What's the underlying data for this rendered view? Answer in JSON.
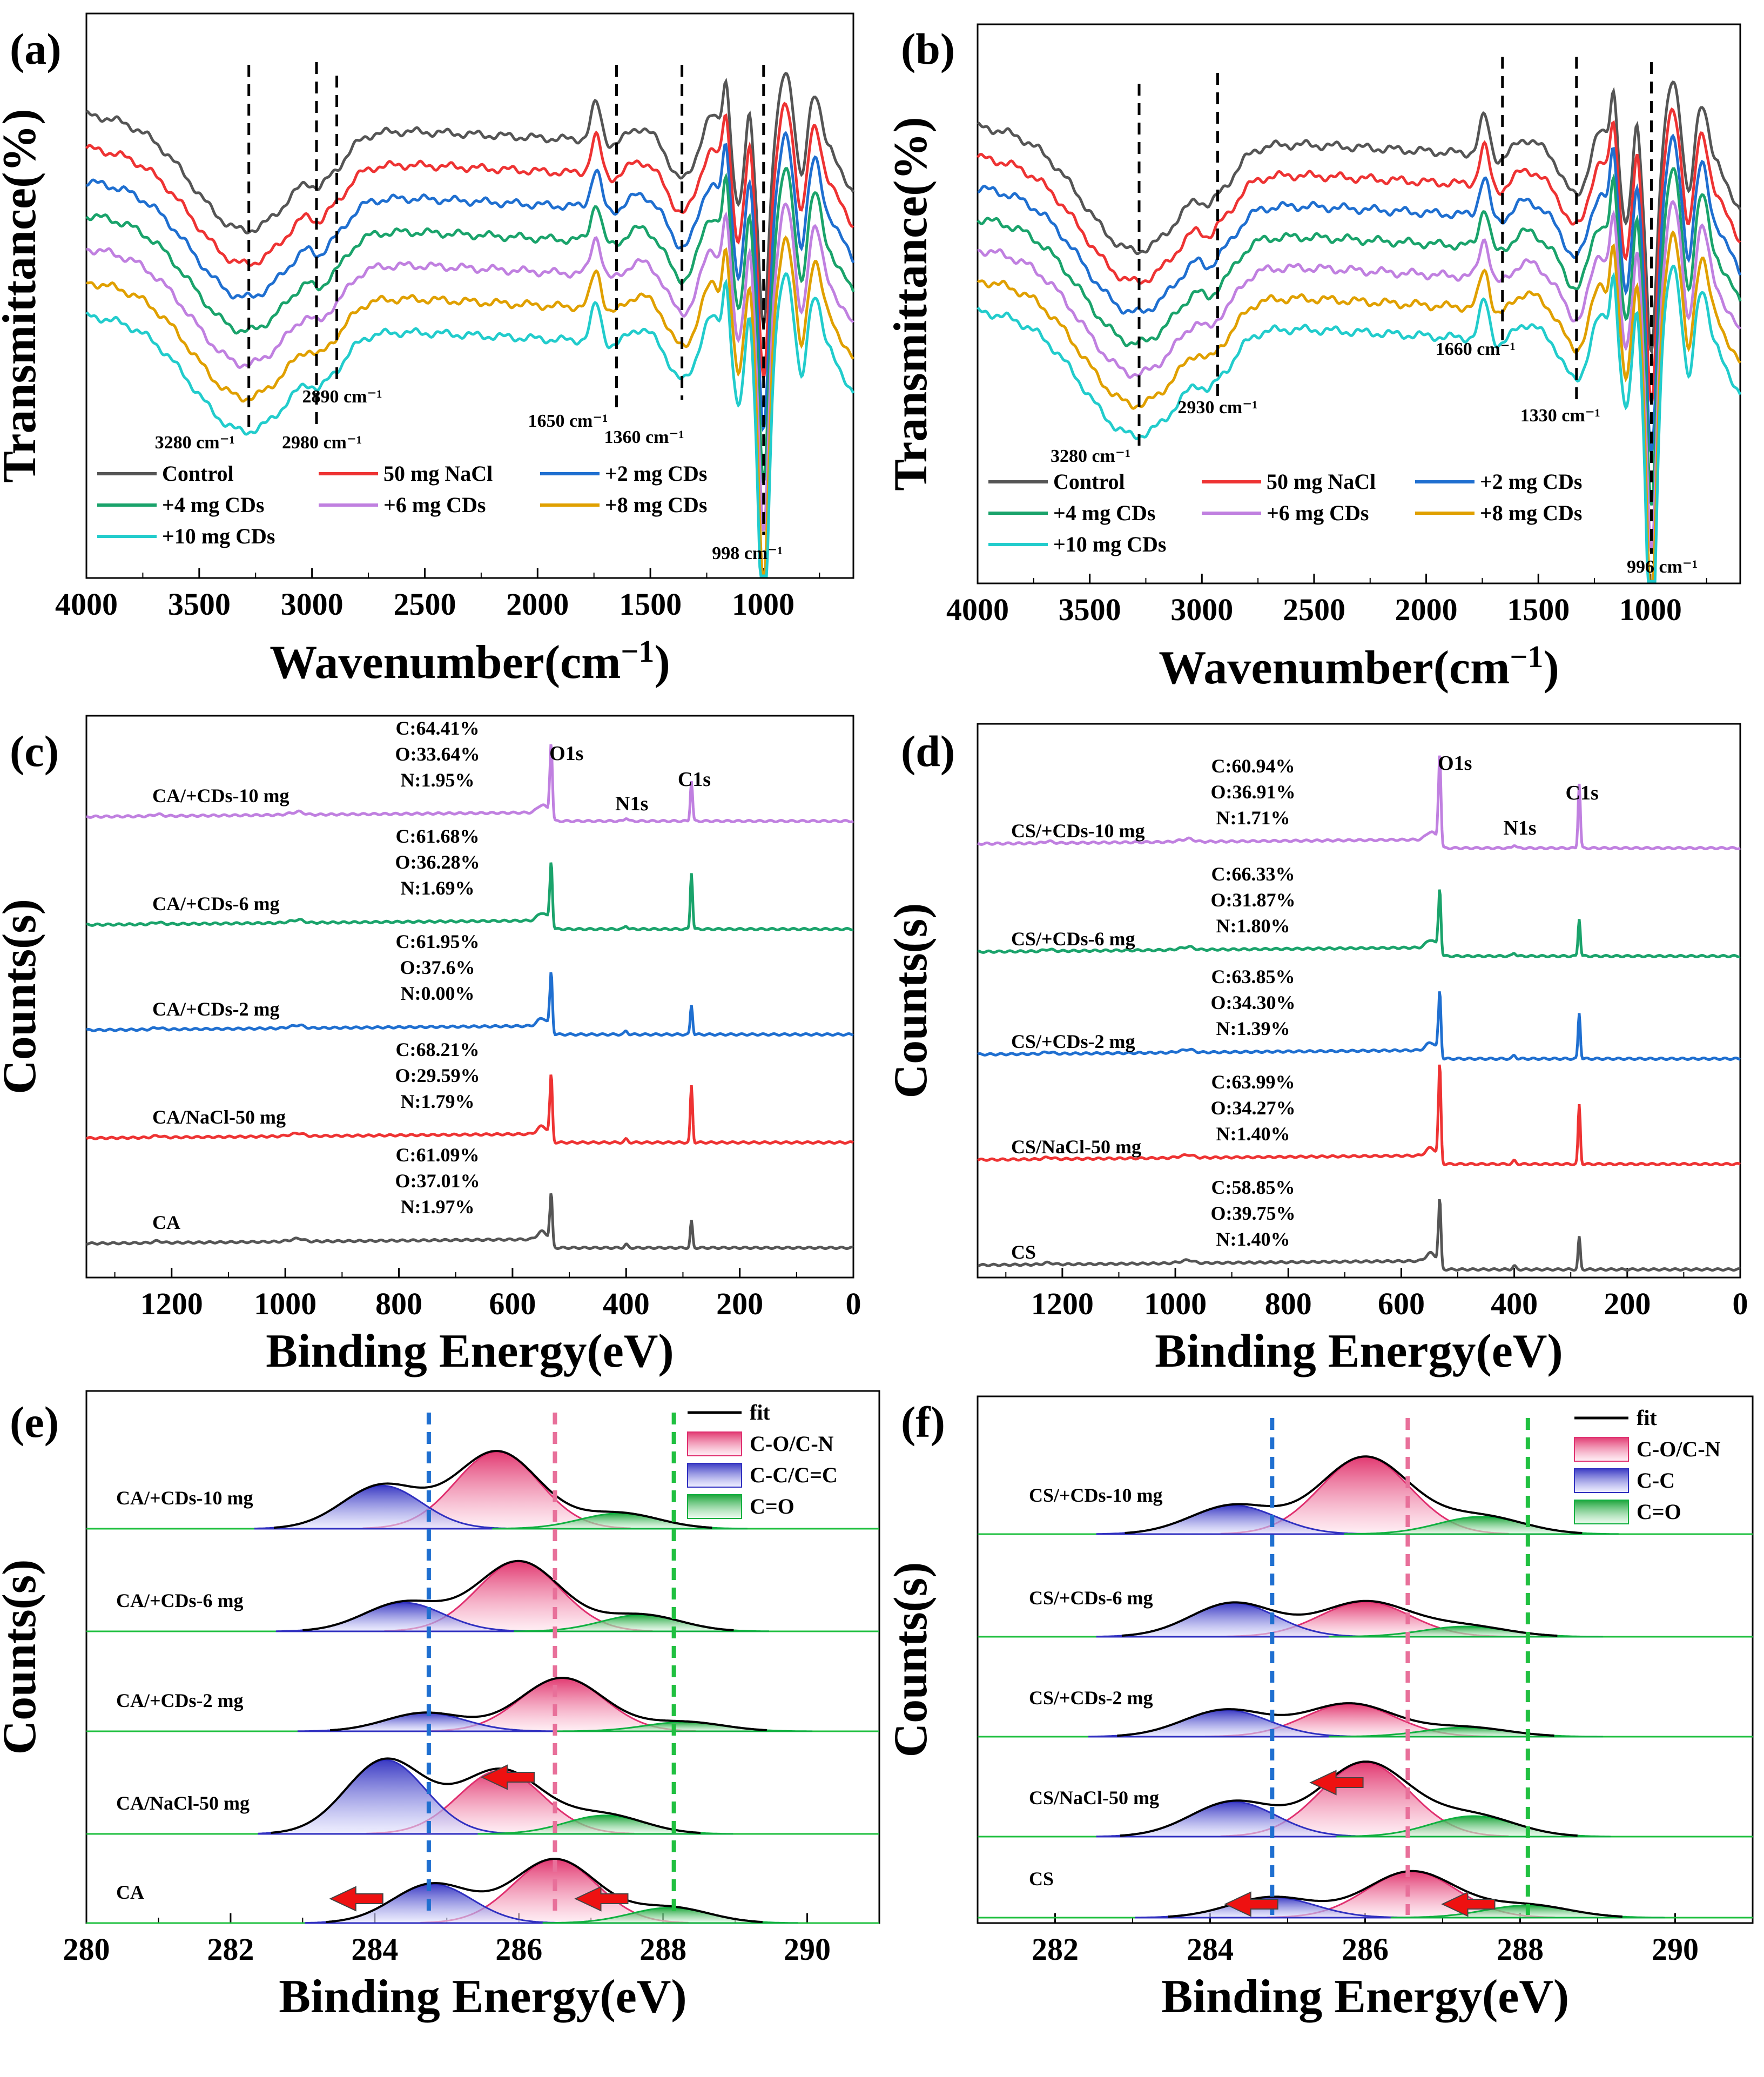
{
  "chart_data": [
    {
      "id": "a",
      "panel_label": "(a)",
      "type": "line",
      "xlabel_main": "Wavenumber(cm",
      "xlabel_sup": "−1",
      "xlabel_end": ")",
      "ylabel": "Transmittance(%)",
      "xlim": [
        4000,
        600
      ],
      "xticks": [
        4000,
        3500,
        3000,
        2500,
        2000,
        1500,
        1000
      ],
      "series": [
        {
          "name": "Control",
          "color": "#555555"
        },
        {
          "name": "50 mg NaCl",
          "color": "#ee3333"
        },
        {
          "name": "+2 mg CDs",
          "color": "#1f6fd0"
        },
        {
          "name": "+4 mg CDs",
          "color": "#1aa36b"
        },
        {
          "name": "+6 mg CDs",
          "color": "#c080e0"
        },
        {
          "name": "+8 mg CDs",
          "color": "#e0a000"
        },
        {
          "name": "+10 mg CDs",
          "color": "#22cccc"
        }
      ],
      "vlines": [
        3280,
        2980,
        2890,
        1650,
        1360,
        998
      ],
      "annotations": [
        "3280 cm⁻¹",
        "2980 cm⁻¹",
        "2890 cm⁻¹",
        "1650 cm⁻¹",
        "1360 cm⁻¹",
        "998 cm⁻¹"
      ]
    },
    {
      "id": "b",
      "panel_label": "(b)",
      "type": "line",
      "xlabel_main": "Wavenumber(cm",
      "xlabel_sup": "−1",
      "xlabel_end": ")",
      "ylabel": "Transmittance(%)",
      "xlim": [
        4000,
        600
      ],
      "xticks": [
        4000,
        3500,
        3000,
        2500,
        2000,
        1500,
        1000
      ],
      "series": [
        {
          "name": "Control",
          "color": "#555555"
        },
        {
          "name": "50 mg NaCl",
          "color": "#ee3333"
        },
        {
          "name": "+2 mg CDs",
          "color": "#1f6fd0"
        },
        {
          "name": "+4 mg CDs",
          "color": "#1aa36b"
        },
        {
          "name": "+6 mg CDs",
          "color": "#c080e0"
        },
        {
          "name": "+8 mg CDs",
          "color": "#e0a000"
        },
        {
          "name": "+10 mg CDs",
          "color": "#22cccc"
        }
      ],
      "vlines": [
        3280,
        2930,
        1660,
        1330,
        996
      ],
      "annotations": [
        "3280 cm⁻¹",
        "2930 cm⁻¹",
        "1660 cm⁻¹",
        "1330 cm⁻¹",
        "996 cm⁻¹"
      ]
    },
    {
      "id": "c",
      "panel_label": "(c)",
      "type": "line",
      "xlabel": "Binding Energy(eV)",
      "ylabel": "Counts(s)",
      "xlim": [
        1350,
        0
      ],
      "xticks": [
        1200,
        1000,
        800,
        600,
        400,
        200,
        0
      ],
      "peak_labels": [
        "O1s",
        "N1s",
        "C1s"
      ],
      "samples": [
        {
          "name": "CA/+CDs-10 mg",
          "color": "#c080e0",
          "composition": [
            "C:64.41%",
            "O:33.64%",
            "N:1.95%"
          ]
        },
        {
          "name": "CA/+CDs-6 mg",
          "color": "#1aa36b",
          "composition": [
            "C:61.68%",
            "O:36.28%",
            "N:1.69%"
          ]
        },
        {
          "name": "CA/+CDs-2 mg",
          "color": "#1f6fd0",
          "composition": [
            "C:61.95%",
            "O:37.6%",
            "N:0.00%"
          ]
        },
        {
          "name": "CA/NaCl-50 mg",
          "color": "#ee3333",
          "composition": [
            "C:68.21%",
            "O:29.59%",
            "N:1.79%"
          ]
        },
        {
          "name": "CA",
          "color": "#555555",
          "composition": [
            "C:61.09%",
            "O:37.01%",
            "N:1.97%"
          ]
        }
      ]
    },
    {
      "id": "d",
      "panel_label": "(d)",
      "type": "line",
      "xlabel": "Binding Energy(eV)",
      "ylabel": "Counts(s)",
      "xlim": [
        1350,
        0
      ],
      "xticks": [
        1200,
        1000,
        800,
        600,
        400,
        200,
        0
      ],
      "peak_labels": [
        "O1s",
        "N1s",
        "C1s"
      ],
      "samples": [
        {
          "name": "CS/+CDs-10 mg",
          "color": "#c080e0",
          "composition": [
            "C:60.94%",
            "O:36.91%",
            "N:1.71%"
          ]
        },
        {
          "name": "CS/+CDs-6 mg",
          "color": "#1aa36b",
          "composition": [
            "C:66.33%",
            "O:31.87%",
            "N:1.80%"
          ]
        },
        {
          "name": "CS/+CDs-2 mg",
          "color": "#1f6fd0",
          "composition": [
            "C:63.85%",
            "O:34.30%",
            "N:1.39%"
          ]
        },
        {
          "name": "CS/NaCl-50 mg",
          "color": "#ee3333",
          "composition": [
            "C:63.99%",
            "O:34.27%",
            "N:1.40%"
          ]
        },
        {
          "name": "CS",
          "color": "#555555",
          "composition": [
            "C:58.85%",
            "O:39.75%",
            "N:1.40%"
          ]
        }
      ]
    },
    {
      "id": "e",
      "panel_label": "(e)",
      "type": "area",
      "xlabel": "Binding Energy(eV)",
      "ylabel": "Counts(s)",
      "xlim": [
        280,
        291
      ],
      "xticks": [
        280,
        282,
        284,
        286,
        288,
        290
      ],
      "legend": [
        {
          "name": "fit",
          "color": "#000000"
        },
        {
          "name": "C-O/C-N",
          "color": "#e8507a"
        },
        {
          "name": "C-C/C=C",
          "color": "#4040c8"
        },
        {
          "name": "C=O",
          "color": "#20b040"
        }
      ],
      "vlines": [
        {
          "x": 284.75,
          "color": "#1f6fd0"
        },
        {
          "x": 286.5,
          "color": "#e8709a"
        },
        {
          "x": 288.15,
          "color": "#20c040"
        }
      ],
      "samples": [
        {
          "name": "CA/+CDs-10 mg",
          "CC": [
            284.1,
            0.42
          ],
          "CO": [
            285.7,
            0.75
          ],
          "C_O": [
            287.4,
            0.15
          ]
        },
        {
          "name": "CA/+CDs-6 mg",
          "CC": [
            284.4,
            0.28
          ],
          "CO": [
            286.0,
            0.68
          ],
          "C_O": [
            287.7,
            0.16
          ]
        },
        {
          "name": "CA/+CDs-2 mg",
          "CC": [
            284.7,
            0.18
          ],
          "CO": [
            286.6,
            0.52
          ],
          "C_O": [
            288.3,
            0.09
          ]
        },
        {
          "name": "CA/NaCl-50 mg",
          "CC": [
            284.15,
            0.72
          ],
          "CO": [
            285.75,
            0.62
          ],
          "C_O": [
            287.2,
            0.18
          ]
        },
        {
          "name": "CA",
          "CC": [
            284.8,
            0.38
          ],
          "CO": [
            286.5,
            0.62
          ],
          "C_O": [
            288.1,
            0.15
          ]
        }
      ]
    },
    {
      "id": "f",
      "panel_label": "(f)",
      "type": "area",
      "xlabel": "Binding Energy(eV)",
      "ylabel": "Counts(s)",
      "xlim": [
        281,
        291
      ],
      "xticks": [
        282,
        284,
        286,
        288,
        290
      ],
      "legend": [
        {
          "name": "fit",
          "color": "#000000"
        },
        {
          "name": "C-O/C-N",
          "color": "#e8507a"
        },
        {
          "name": "C-C",
          "color": "#4040c8"
        },
        {
          "name": "C=O",
          "color": "#20b040"
        }
      ],
      "vlines": [
        {
          "x": 284.8,
          "color": "#1f6fd0"
        },
        {
          "x": 286.55,
          "color": "#e8709a"
        },
        {
          "x": 288.1,
          "color": "#20c040"
        }
      ],
      "samples": [
        {
          "name": "CS/+CDs-10 mg",
          "CC": [
            284.3,
            0.28
          ],
          "CO": [
            286.0,
            0.75
          ],
          "C_O": [
            287.5,
            0.17
          ]
        },
        {
          "name": "CS/+CDs-6 mg",
          "CC": [
            284.3,
            0.33
          ],
          "CO": [
            286.0,
            0.34
          ],
          "C_O": [
            287.3,
            0.1
          ]
        },
        {
          "name": "CS/+CDs-2 mg",
          "CC": [
            284.2,
            0.26
          ],
          "CO": [
            285.8,
            0.32
          ],
          "C_O": [
            287.3,
            0.09
          ]
        },
        {
          "name": "CS/NaCl-50 mg",
          "CC": [
            284.3,
            0.34
          ],
          "CO": [
            286.0,
            0.72
          ],
          "C_O": [
            287.4,
            0.2
          ]
        },
        {
          "name": "CS",
          "CC": [
            284.8,
            0.2
          ],
          "CO": [
            286.6,
            0.45
          ],
          "C_O": [
            288.1,
            0.12
          ]
        }
      ]
    }
  ]
}
